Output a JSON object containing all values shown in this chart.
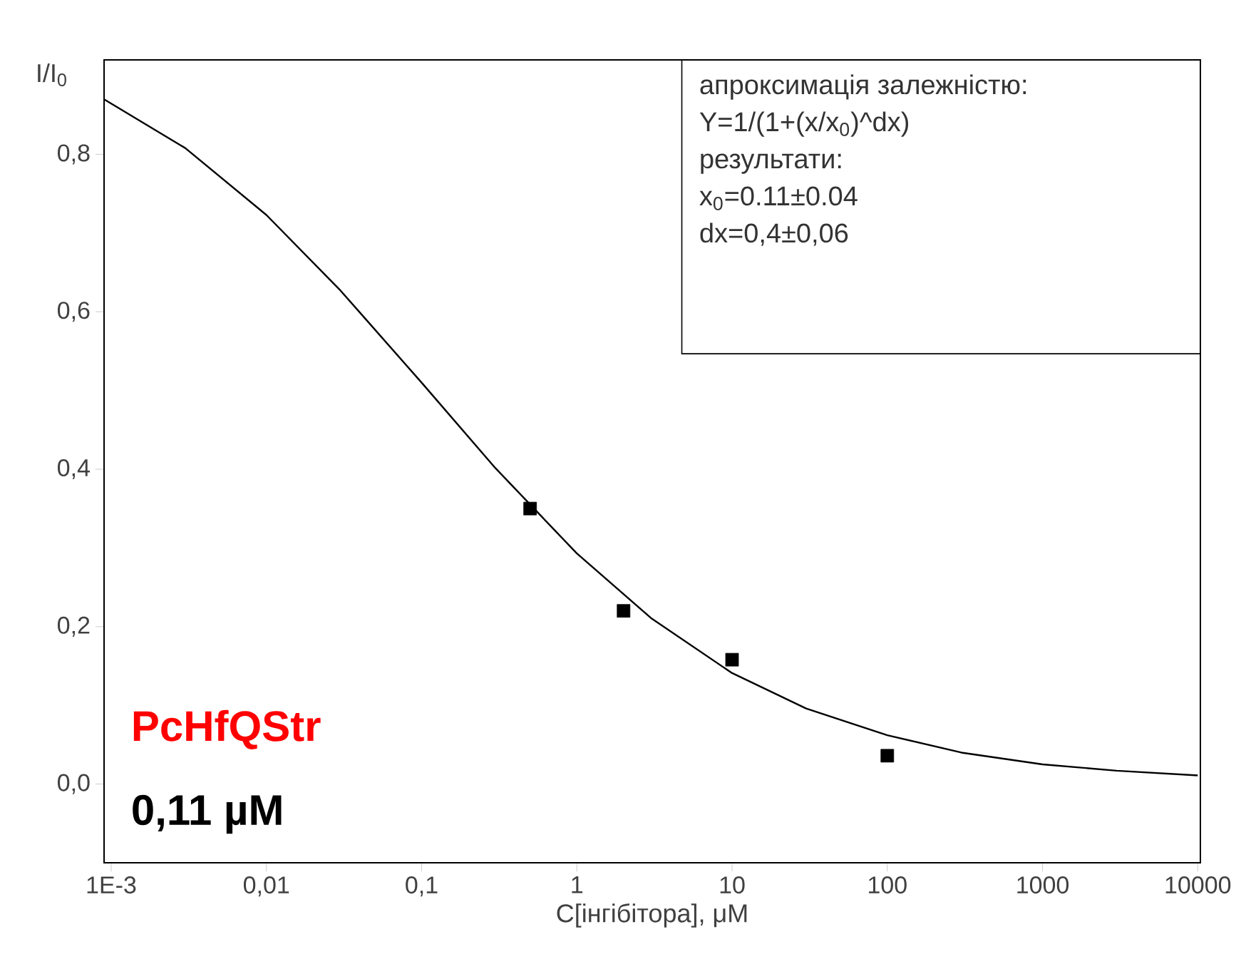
{
  "chart_data": {
    "type": "scatter",
    "xlabel": "C[інгібітора], μM",
    "ylabel": "I/I$_{0}$",
    "log": "x",
    "xlim": [
      0.0009,
      10400
    ],
    "ylim": [
      -0.1,
      0.92
    ],
    "xticks": [
      {
        "value": 0.001,
        "label": "1E-3"
      },
      {
        "value": 0.01,
        "label": "0,01"
      },
      {
        "value": 0.1,
        "label": "0,1"
      },
      1,
      10,
      100,
      1000,
      10000
    ],
    "yticks": [
      {
        "value": 0,
        "label": "0,0"
      },
      {
        "value": 0.2,
        "label": "0,2"
      },
      {
        "value": 0.4,
        "label": "0,4"
      },
      {
        "value": 0.6,
        "label": "0,6"
      },
      {
        "value": 0.8,
        "label": "0,8"
      }
    ],
    "series": [
      {
        "type": "scatter",
        "color": "#000000",
        "marker": "square",
        "x": [
          0.5,
          2,
          10,
          100
        ],
        "values": [
          0.35,
          0.22,
          0.158,
          0.036
        ]
      },
      {
        "type": "line",
        "color": "#000000",
        "marker": "none",
        "line_style": "solid",
        "x": [
          0.0009,
          0.003,
          0.01,
          0.03,
          0.1,
          0.3,
          1,
          3,
          10,
          30,
          100,
          300,
          1000,
          3000,
          10000
        ],
        "values": [
          0.87,
          0.808,
          0.723,
          0.627,
          0.51,
          0.401,
          0.293,
          0.211,
          0.141,
          0.096,
          0.062,
          0.04,
          0.025,
          0.017,
          0.011
        ]
      }
    ],
    "annotations": [
      "апроксимація залежністю:",
      "Y=1/(1+(x/x$_{0}$)^dx)",
      "результати:",
      "x$_{0}$=0.11±0.04",
      "dx=0,4±0,06",
      "PcHfQStr",
      "0,11 µM"
    ]
  }
}
